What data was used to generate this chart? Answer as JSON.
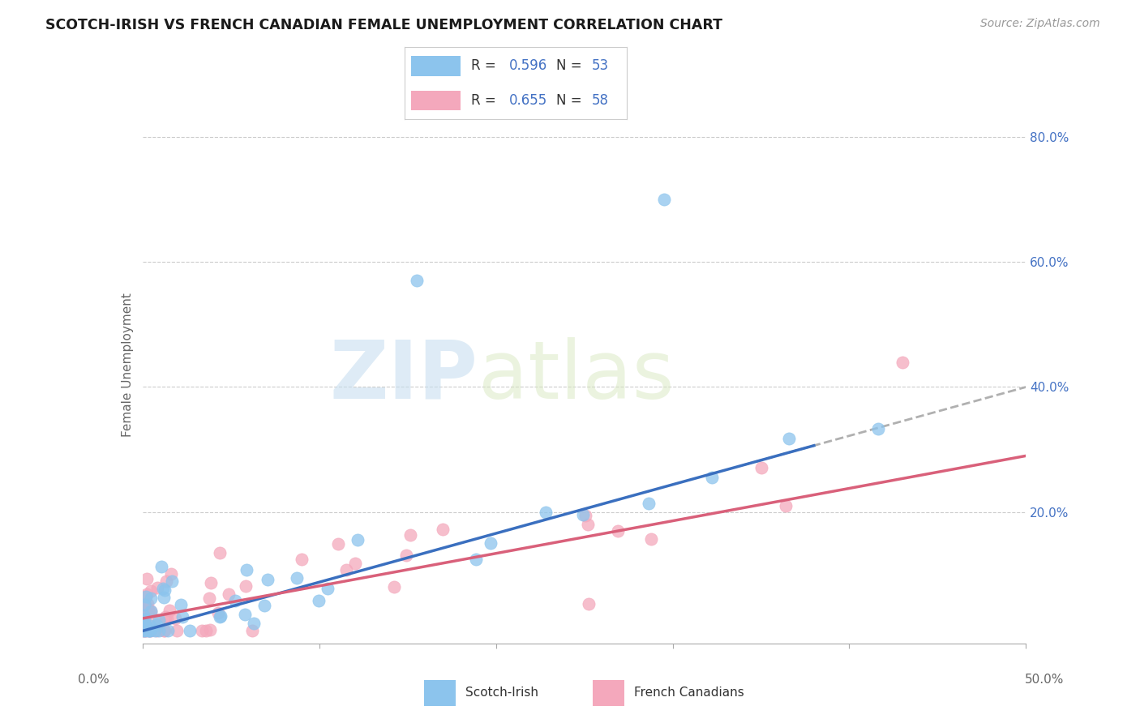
{
  "title": "SCOTCH-IRISH VS FRENCH CANADIAN FEMALE UNEMPLOYMENT CORRELATION CHART",
  "source": "Source: ZipAtlas.com",
  "ylabel": "Female Unemployment",
  "xlim": [
    0.0,
    0.5
  ],
  "ylim": [
    -0.01,
    0.88
  ],
  "scotch_irish_color": "#8CC4ED",
  "french_canadian_color": "#F4A8BC",
  "scotch_irish_R": 0.596,
  "scotch_irish_N": 53,
  "french_canadian_R": 0.655,
  "french_canadian_N": 58,
  "trend_line_blue_color": "#3A6FBF",
  "trend_line_pink_color": "#D9607A",
  "trend_line_dashed_color": "#B0B0B0",
  "watermark_zip": "ZIP",
  "watermark_atlas": "atlas",
  "background_color": "#FFFFFF",
  "grid_color": "#CCCCCC",
  "grid_style": "--",
  "si_slope": 0.78,
  "si_intercept": 0.01,
  "fc_slope": 0.52,
  "fc_intercept": 0.03,
  "text_color_blue": "#4472C4",
  "text_color_dark": "#333333"
}
